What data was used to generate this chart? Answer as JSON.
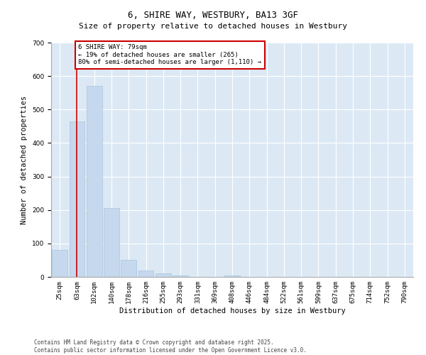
{
  "title1": "6, SHIRE WAY, WESTBURY, BA13 3GF",
  "title2": "Size of property relative to detached houses in Westbury",
  "xlabel": "Distribution of detached houses by size in Westbury",
  "ylabel": "Number of detached properties",
  "categories": [
    "25sqm",
    "63sqm",
    "102sqm",
    "140sqm",
    "178sqm",
    "216sqm",
    "255sqm",
    "293sqm",
    "331sqm",
    "369sqm",
    "408sqm",
    "446sqm",
    "484sqm",
    "522sqm",
    "561sqm",
    "599sqm",
    "637sqm",
    "675sqm",
    "714sqm",
    "752sqm",
    "790sqm"
  ],
  "values": [
    80,
    465,
    570,
    205,
    50,
    20,
    10,
    5,
    0,
    0,
    5,
    0,
    0,
    0,
    0,
    0,
    0,
    0,
    0,
    0,
    0
  ],
  "bar_color": "#c5d8ed",
  "bar_edge_color": "#a8c4dc",
  "vline_x_index": 1,
  "vline_color": "#cc0000",
  "annotation_text": "6 SHIRE WAY: 79sqm\n← 19% of detached houses are smaller (265)\n80% of semi-detached houses are larger (1,110) →",
  "annotation_box_color": "#ffffff",
  "annotation_box_edge": "#cc0000",
  "ylim": [
    0,
    700
  ],
  "yticks": [
    0,
    100,
    200,
    300,
    400,
    500,
    600,
    700
  ],
  "background_color": "#dce9f5",
  "footer1": "Contains HM Land Registry data © Crown copyright and database right 2025.",
  "footer2": "Contains public sector information licensed under the Open Government Licence v3.0.",
  "title_fontsize": 9,
  "subtitle_fontsize": 8,
  "axis_label_fontsize": 7.5,
  "tick_fontsize": 6.5,
  "annotation_fontsize": 6.5,
  "footer_fontsize": 5.5
}
